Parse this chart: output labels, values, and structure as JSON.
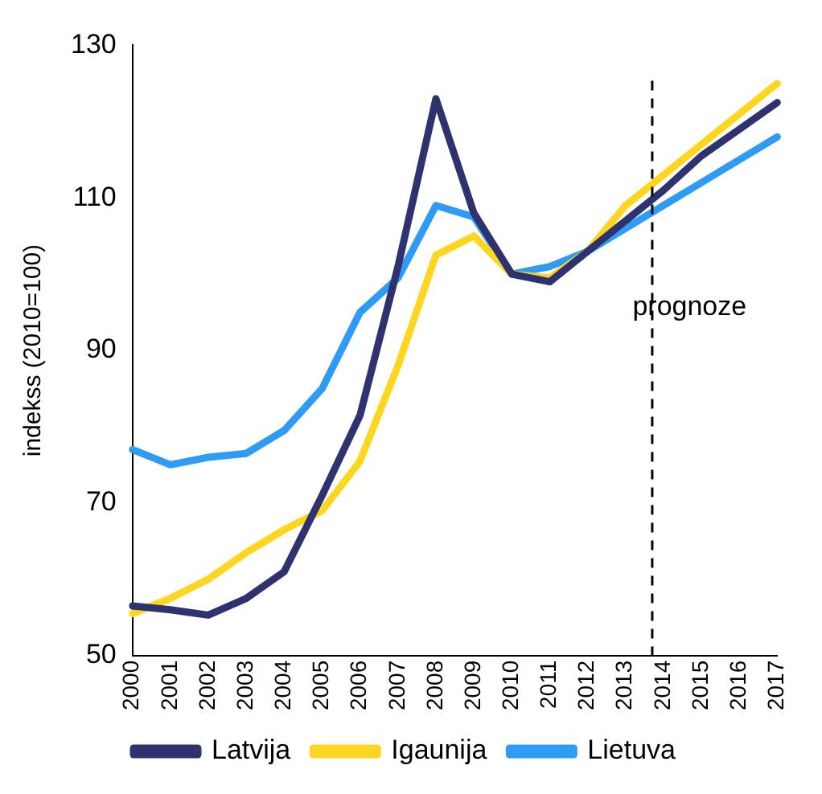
{
  "chart_data": {
    "type": "line",
    "ylabel": "indekss (2010=100)",
    "categories": [
      "2000",
      "2001",
      "2002",
      "2003",
      "2004",
      "2005",
      "2006",
      "2007",
      "2008",
      "2009",
      "2010",
      "2011",
      "2012",
      "2013",
      "2014",
      "2015",
      "2016",
      "2017"
    ],
    "series": [
      {
        "name": "Latvija",
        "color": "#2e3370",
        "values": [
          56.5,
          56,
          55.3,
          57.5,
          61,
          71,
          81.5,
          101,
          123,
          108,
          100,
          99,
          103,
          107,
          111,
          115.5,
          119,
          122.5
        ]
      },
      {
        "name": "Igaunija",
        "color": "#ffd61f",
        "values": [
          55.5,
          57.5,
          60,
          63.5,
          66.5,
          69,
          75.5,
          88,
          102.5,
          105,
          100,
          99.5,
          103,
          109,
          113,
          117,
          121,
          125
        ]
      },
      {
        "name": "Lietuva",
        "color": "#2e9cf4",
        "values": [
          77,
          75,
          76,
          76.5,
          79.5,
          85,
          95,
          99.5,
          109,
          107.5,
          100,
          101,
          103,
          106,
          109,
          112,
          115,
          118
        ]
      }
    ],
    "ylim": [
      50,
      130
    ],
    "yticks": [
      50,
      70,
      90,
      110,
      130
    ],
    "grid": false,
    "legend": "bottom",
    "marker": "none",
    "line_style": "solid",
    "ref_lines": [
      {
        "axis": "x",
        "value": "2014",
        "color": "#000000",
        "line_style": "dashed"
      }
    ],
    "annotations": [
      "prognoze"
    ]
  }
}
